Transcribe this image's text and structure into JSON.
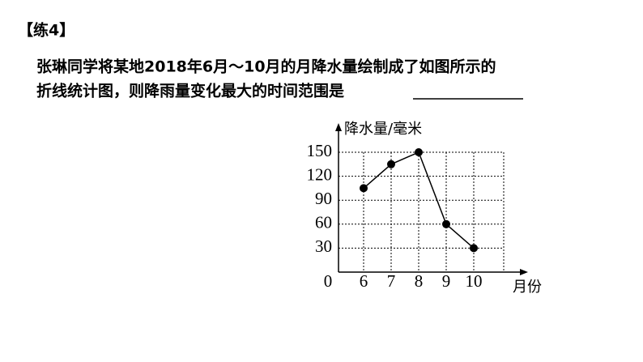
{
  "header": {
    "title": "【练4】"
  },
  "question": {
    "lines": [
      "张琳同学将某地2018年6月～10月的月降水量绘制成了如图所示的",
      "折线统计图，则降雨量变化最大的时间范围是"
    ]
  },
  "chart_data": {
    "type": "line",
    "y_label": "降水量/毫米",
    "x_label": "月份",
    "origin_label": "0",
    "categories": [
      "6",
      "7",
      "8",
      "9",
      "10"
    ],
    "values": [
      105,
      135,
      150,
      60,
      30
    ],
    "color": "#000000",
    "ylim": [
      0,
      150
    ],
    "yticks": [
      30,
      60,
      90,
      120,
      150
    ],
    "grid": true
  }
}
